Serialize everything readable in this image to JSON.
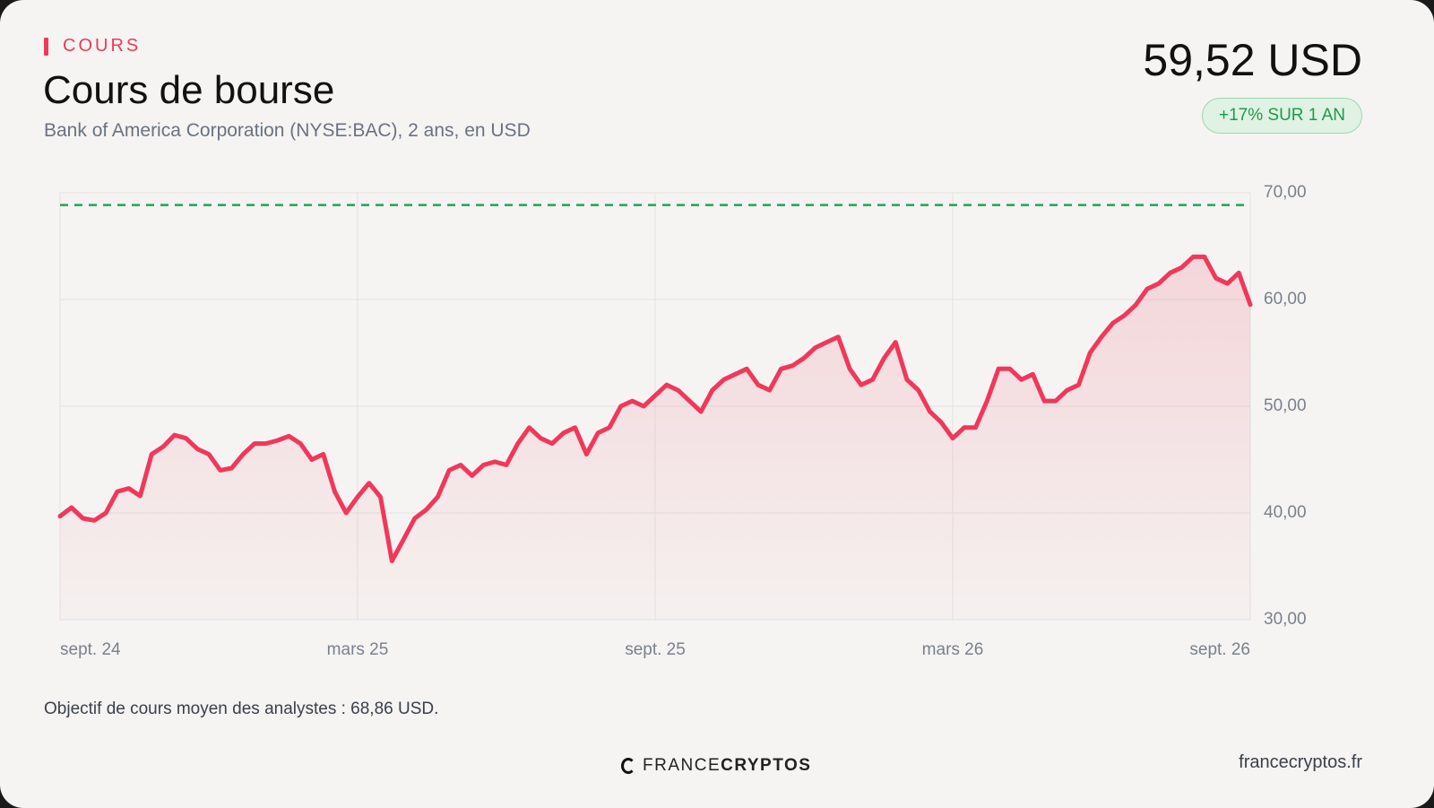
{
  "header": {
    "eyebrow": "COURS",
    "title": "Cours de bourse",
    "subtitle": "Bank of America Corporation (NYSE:BAC), 2 ans, en USD",
    "price": "59,52 USD",
    "badge": "+17% SUR 1 AN"
  },
  "chart_data": {
    "type": "line",
    "series": [
      {
        "name": "BAC",
        "color": "#f0385a",
        "values": [
          39.7,
          40.5,
          39.5,
          39.3,
          40.0,
          42.0,
          42.3,
          41.6,
          45.5,
          46.2,
          47.3,
          47.0,
          46.0,
          45.5,
          44.0,
          44.2,
          45.5,
          46.5,
          46.5,
          46.8,
          47.2,
          46.5,
          45.0,
          45.5,
          42.0,
          40.0,
          41.5,
          42.8,
          41.5,
          35.5,
          37.5,
          39.5,
          40.3,
          41.5,
          44.0,
          44.5,
          43.5,
          44.5,
          44.8,
          44.5,
          46.5,
          48.0,
          47.0,
          46.5,
          47.5,
          48.0,
          45.5,
          47.5,
          48.0,
          50.0,
          50.5,
          50.0,
          51.0,
          52.0,
          51.5,
          50.5,
          49.5,
          51.5,
          52.5,
          53.0,
          53.5,
          52.0,
          51.5,
          53.5,
          53.8,
          54.5,
          55.5,
          56.0,
          56.5,
          53.5,
          52.0,
          52.5,
          54.5,
          56.0,
          52.5,
          51.5,
          49.5,
          48.5,
          47.0,
          48.0,
          48.0,
          50.5,
          53.5,
          53.5,
          52.5,
          53.0,
          50.5,
          50.5,
          51.5,
          52.0,
          55.0,
          56.5,
          57.8,
          58.5,
          59.5,
          61.0,
          61.5,
          62.5,
          63.0,
          64.0,
          64.0,
          62.0,
          61.5,
          62.5,
          59.52
        ]
      }
    ],
    "xlim": [
      0,
      104
    ],
    "xticks": [
      {
        "value": 0,
        "label": "sept. 24"
      },
      {
        "value": 26,
        "label": "mars 25"
      },
      {
        "value": 52,
        "label": "sept. 25"
      },
      {
        "value": 78,
        "label": "mars 26"
      },
      {
        "value": 104,
        "label": "sept. 26"
      }
    ],
    "ylim": [
      30,
      70
    ],
    "yticks": [
      {
        "value": 30,
        "label": "30,00"
      },
      {
        "value": 40,
        "label": "40,00"
      },
      {
        "value": 50,
        "label": "50,00"
      },
      {
        "value": 60,
        "label": "60,00"
      },
      {
        "value": 70,
        "label": "70,00"
      }
    ],
    "grid": true,
    "target_line": {
      "value": 68.86,
      "color": "#22a355"
    },
    "note": "Objectif de cours moyen des analystes : 68,86 USD."
  },
  "footer": {
    "logo_left": "FRANCE",
    "logo_right": "CRYPTOS",
    "site": "francecryptos.fr"
  }
}
